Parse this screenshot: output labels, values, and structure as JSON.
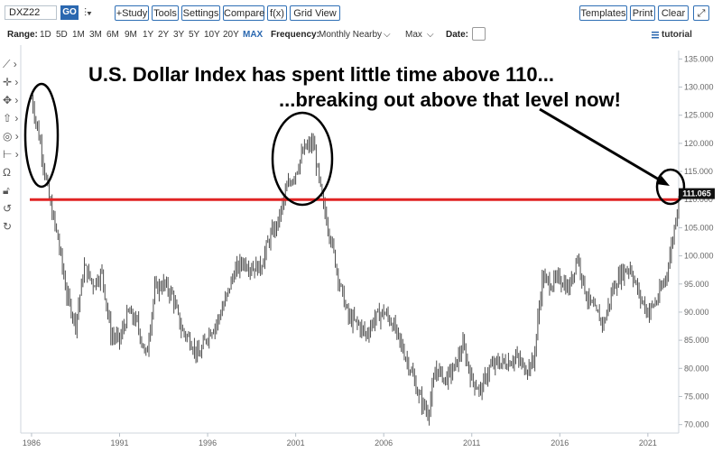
{
  "toolbar": {
    "symbol": "DXZ22",
    "go_label": "GO",
    "bar_type_glyph": "⫶▾",
    "study_label": "+Study",
    "tools_label": "Tools",
    "settings_label": "Settings",
    "compare_label": "Compare",
    "fx_label": "f(x)",
    "gridview_label": "Grid View",
    "templates_label": "Templates",
    "print_label": "Print",
    "clear_label": "Clear",
    "expand_glyph": "⤢"
  },
  "rangebar": {
    "range_label": "Range:",
    "ranges": [
      "1D",
      "5D",
      "1M",
      "3M",
      "6M",
      "9M",
      "1Y",
      "2Y",
      "3Y",
      "5Y",
      "10Y",
      "20Y",
      "MAX"
    ],
    "active_range": "MAX",
    "frequency_label": "Frequency:",
    "frequency_value": "Monthly Nearby",
    "max_label": "Max",
    "date_label": "Date:",
    "tutorial_label": "tutorial"
  },
  "sidebar_tools": [
    "line-draw-icon",
    "crosshair-icon",
    "pan-icon",
    "up-arrow-icon",
    "circle-icon",
    "measure-icon",
    "magnet-icon",
    "lock-icon",
    "undo-icon",
    "redo-icon"
  ],
  "colors": {
    "accent": "#2b68b0",
    "price_bars": "#4d4d4d",
    "threshold_line": "#e02424",
    "annotation": "#000000",
    "last_price_bg": "#111111"
  },
  "annotations": {
    "headline_1": "U.S. Dollar Index has spent little time above 110...",
    "headline_2": "...breaking out above that level now!"
  },
  "chart_data": {
    "type": "ohlc",
    "frequency": "monthly",
    "xlabel": "",
    "ylabel": "",
    "ylim": [
      68.5,
      136.5
    ],
    "y_ticks": [
      70,
      75,
      80,
      85,
      90,
      95,
      100,
      105,
      110,
      115,
      120,
      125,
      130,
      135
    ],
    "y_tick_labels": [
      "70.000",
      "75.000",
      "80.000",
      "85.000",
      "90.000",
      "95.000",
      "100.000",
      "105.000",
      "110.000",
      "115.000",
      "120.000",
      "125.000",
      "130.000",
      "135.000"
    ],
    "x_tick_labels": [
      "1986",
      "1991",
      "1996",
      "2001",
      "2006",
      "2011",
      "2016",
      "2021"
    ],
    "x_tick_values": [
      1986,
      1991,
      1996,
      2001,
      2006,
      2011,
      2016,
      2021
    ],
    "x_range": [
      1985.9,
      2022.75
    ],
    "grid": false,
    "last_price": 111.065,
    "last_price_label": "111.065",
    "threshold": 110,
    "series": [
      {
        "x": [
          1986.0,
          1986.5,
          1987.0,
          1987.5,
          1988.0,
          1988.5,
          1989.0,
          1989.5,
          1990.0,
          1990.5,
          1991.0,
          1991.5,
          1992.0,
          1992.5,
          1993.0,
          1993.5,
          1994.0,
          1994.5,
          1995.0,
          1995.5,
          1996.0,
          1996.5,
          1997.0,
          1997.5,
          1998.0,
          1998.5,
          1999.0,
          1999.5,
          2000.0,
          2000.5,
          2001.0,
          2001.5,
          2002.0,
          2002.5,
          2003.0,
          2003.5,
          2004.0,
          2004.5,
          2005.0,
          2005.5,
          2006.0,
          2006.5,
          2007.0,
          2007.5,
          2008.0,
          2008.5,
          2009.0,
          2009.5,
          2010.0,
          2010.5,
          2011.0,
          2011.5,
          2012.0,
          2012.5,
          2013.0,
          2013.5,
          2014.0,
          2014.5,
          2015.0,
          2015.5,
          2016.0,
          2016.5,
          2017.0,
          2017.5,
          2018.0,
          2018.5,
          2019.0,
          2019.5,
          2020.0,
          2020.5,
          2021.0,
          2021.5,
          2022.0,
          2022.3,
          2022.6,
          2022.75
        ],
        "y": [
          128,
          120,
          110,
          103,
          93,
          88,
          98,
          95,
          97,
          86,
          85,
          90,
          88,
          82,
          94,
          95,
          93,
          87,
          85,
          82,
          86,
          88,
          92,
          97,
          99,
          98,
          98,
          103,
          106,
          112,
          115,
          119,
          120,
          110,
          103,
          95,
          89,
          88,
          86,
          89,
          90,
          88,
          84,
          80,
          75,
          72,
          80,
          78,
          80,
          84,
          78,
          76,
          80,
          81,
          81,
          82,
          80,
          81,
          96,
          95,
          96,
          94,
          100,
          93,
          90,
          88,
          94,
          97,
          98,
          93,
          90,
          92,
          96,
          101,
          107,
          111.065
        ]
      }
    ]
  }
}
